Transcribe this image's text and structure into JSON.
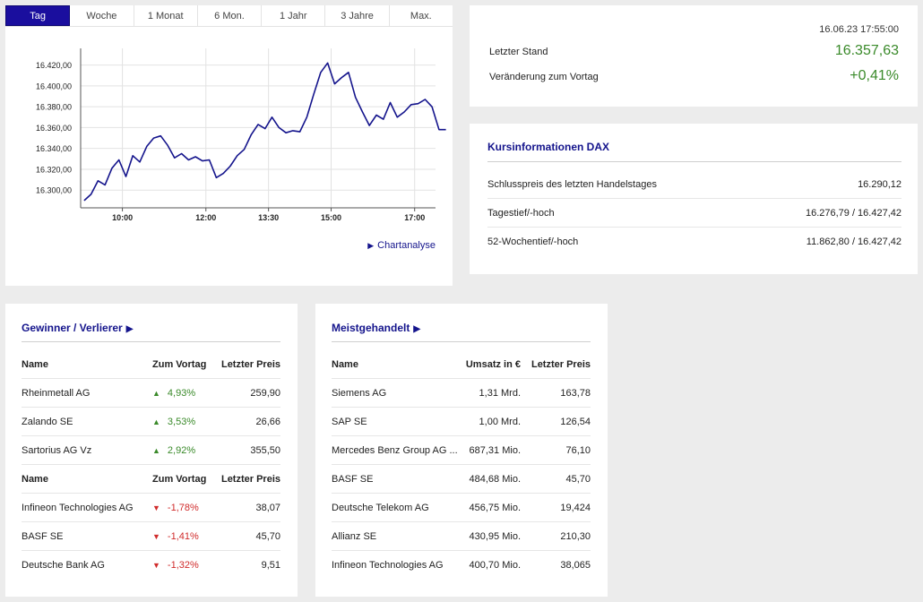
{
  "chart": {
    "tabs": [
      "Tag",
      "Woche",
      "1 Monat",
      "6 Mon.",
      "1 Jahr",
      "3 Jahre",
      "Max."
    ],
    "active_tab": 0,
    "link_label": "Chartanalyse",
    "line_color": "#14148c",
    "chart_data": {
      "type": "line",
      "x_ticks": [
        "10:00",
        "12:00",
        "13:30",
        "15:00",
        "17:00"
      ],
      "x_range": [
        "09:00",
        "17:30"
      ],
      "y_ticks": [
        "16.300,00",
        "16.320,00",
        "16.340,00",
        "16.360,00",
        "16.380,00",
        "16.400,00",
        "16.420,00"
      ],
      "ylim": [
        16283,
        16436
      ],
      "grid": true,
      "series": [
        {
          "x": [
            "09:05",
            "09:15",
            "09:25",
            "09:35",
            "09:45",
            "09:55",
            "10:05",
            "10:15",
            "10:25",
            "10:35",
            "10:45",
            "10:55",
            "11:05",
            "11:15",
            "11:25",
            "11:35",
            "11:45",
            "11:55",
            "12:05",
            "12:15",
            "12:25",
            "12:35",
            "12:45",
            "12:55",
            "13:05",
            "13:15",
            "13:25",
            "13:35",
            "13:45",
            "13:55",
            "14:05",
            "14:15",
            "14:25",
            "14:35",
            "14:45",
            "14:55",
            "15:05",
            "15:15",
            "15:25",
            "15:35",
            "15:45",
            "15:55",
            "16:05",
            "16:15",
            "16:25",
            "16:35",
            "16:45",
            "16:55",
            "17:05",
            "17:15",
            "17:25",
            "17:35",
            "17:45"
          ],
          "y": [
            16290,
            16296,
            16309,
            16305,
            16321,
            16329,
            16313,
            16333,
            16327,
            16342,
            16350,
            16352,
            16343,
            16331,
            16335,
            16329,
            16332,
            16328,
            16329,
            16312,
            16316,
            16323,
            16333,
            16339,
            16353,
            16363,
            16359,
            16370,
            16360,
            16355,
            16357,
            16356,
            16370,
            16392,
            16413,
            16422,
            16402,
            16408,
            16413,
            16389,
            16375,
            16362,
            16372,
            16368,
            16384,
            16370,
            16375,
            16382,
            16383,
            16387,
            16380,
            16358,
            16358
          ]
        }
      ]
    }
  },
  "quote": {
    "timestamp": "16.06.23 17:55:00",
    "last_label": "Letzter Stand",
    "last_value": "16.357,63",
    "change_label": "Veränderung zum Vortag",
    "change_value": "+0,41%",
    "positive_color": "#3a8a2a"
  },
  "info": {
    "title": "Kursinformationen DAX",
    "rows": [
      {
        "label": "Schlusspreis des letzten Handelstages",
        "value": "16.290,12"
      },
      {
        "label": "Tagestief/-hoch",
        "value": "16.276,79 / 16.427,42"
      },
      {
        "label": "52-Wochentief/-hoch",
        "value": "11.862,80 / 16.427,42"
      }
    ]
  },
  "gainers": {
    "title": "Gewinner / Verlierer",
    "header": {
      "name": "Name",
      "change": "Zum Vortag",
      "price": "Letzter Preis"
    },
    "winners": [
      {
        "name": "Rheinmetall AG",
        "change": "4,93%",
        "price": "259,90"
      },
      {
        "name": "Zalando SE",
        "change": "3,53%",
        "price": "26,66"
      },
      {
        "name": "Sartorius AG Vz",
        "change": "2,92%",
        "price": "355,50"
      }
    ],
    "losers": [
      {
        "name": "Infineon Technologies AG",
        "change": "-1,78%",
        "price": "38,07"
      },
      {
        "name": "BASF SE",
        "change": "-1,41%",
        "price": "45,70"
      },
      {
        "name": "Deutsche Bank AG",
        "change": "-1,32%",
        "price": "9,51"
      }
    ],
    "up_icon": "triangle-up-icon",
    "down_icon": "triangle-down-icon",
    "up_color": "#3a8a2a",
    "down_color": "#d02b2b"
  },
  "traded": {
    "title": "Meistgehandelt",
    "header": {
      "name": "Name",
      "volume": "Umsatz in €",
      "price": "Letzter Preis"
    },
    "rows": [
      {
        "name": "Siemens AG",
        "volume": "1,31 Mrd.",
        "price": "163,78"
      },
      {
        "name": "SAP SE",
        "volume": "1,00 Mrd.",
        "price": "126,54"
      },
      {
        "name": "Mercedes Benz Group AG ...",
        "volume": "687,31 Mio.",
        "price": "76,10"
      },
      {
        "name": "BASF SE",
        "volume": "484,68 Mio.",
        "price": "45,70"
      },
      {
        "name": "Deutsche Telekom AG",
        "volume": "456,75 Mio.",
        "price": "19,424"
      },
      {
        "name": "Allianz SE",
        "volume": "430,95 Mio.",
        "price": "210,30"
      },
      {
        "name": "Infineon Technologies AG",
        "volume": "400,70 Mio.",
        "price": "38,065"
      }
    ]
  }
}
